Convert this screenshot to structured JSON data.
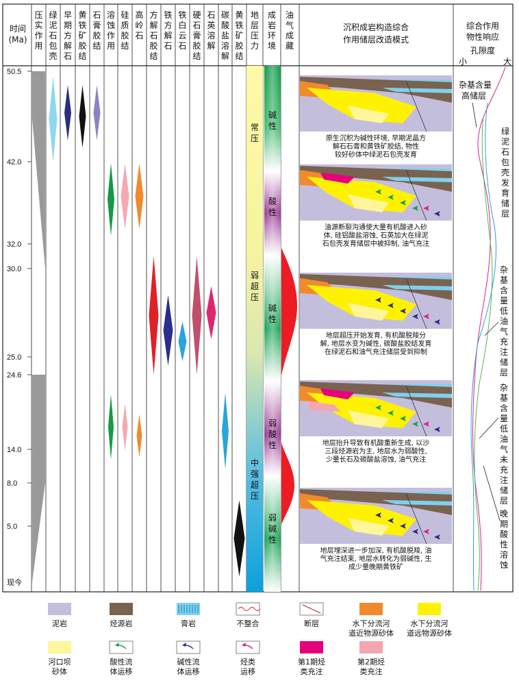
{
  "header": {
    "time": [
      "时间",
      "(Ma)"
    ],
    "columns": [
      "压实作用",
      "绿泥石包壳",
      "早期方解石",
      "黄铁矿胶结",
      "石膏胶结",
      "溶蚀作用",
      "硅质胶结",
      "高岭石",
      "方解石胶结",
      "铁方解石",
      "铁白云石",
      "硬石膏胶结",
      "石英溶解",
      "碳酸盐溶解",
      "黄铁矿胶结"
    ],
    "pressure": "地层压力",
    "environment": "成岩环境",
    "oil": "油气成藏",
    "model": [
      "沉积成岩构造综合",
      "作用储层改造模式"
    ],
    "response": [
      "综合作用",
      "物性响应"
    ],
    "porosity": "孔隙度",
    "porosity_small": "小",
    "porosity_large": "大"
  },
  "time_ticks": [
    {
      "label": "50.5",
      "ma": 50.5,
      "red": false
    },
    {
      "label": "42.0",
      "ma": 42.0,
      "red": false
    },
    {
      "label": "32.0",
      "ma": 32.0,
      "red": false
    },
    {
      "label": "30.0",
      "ma": 30.0,
      "red": true
    },
    {
      "label": "25.0",
      "ma": 25.0,
      "red": true
    },
    {
      "label": "24.6",
      "ma": 24.6,
      "red": false
    },
    {
      "label": "14.0",
      "ma": 14.0,
      "red": false
    },
    {
      "label": "8.0",
      "ma": 8.0,
      "red": false
    },
    {
      "label": "5.0",
      "ma": 5.0,
      "red": true
    },
    {
      "label": "现今",
      "ma": 0,
      "red": false
    }
  ],
  "pressure_labels": [
    "常压",
    "弱超压",
    "中强超压"
  ],
  "environment_labels": [
    "碱性",
    "酸性",
    "碱性",
    "弱酸性",
    "弱碱性"
  ],
  "panel_captions": [
    [
      "原生沉积为碱性环境, 早期泥晶方",
      "解石石膏和黄铁矿胶结, 物性",
      "较好砂体中绿泥石包壳发育"
    ],
    [
      "油源断裂沟通使大量有机酸进入砂",
      "体, 硅铝酸盐溶蚀, 石英加大在绿泥",
      "石包壳发育储层中被抑制, 油气充注"
    ],
    [
      "地层超压开始发育, 有机酸脱羧分",
      "解, 地层水变为碱性, 碳酸盐胶结发育",
      "在绿泥石和油气充注储层受到抑制"
    ],
    [
      "地层抬升导致有机酸重新生成, 以沙",
      "三段烃源岩为主, 地层水为弱酸性,",
      "少量长石及碳酸盐溶蚀, 油气充注"
    ],
    [
      "地层埋深进一步加深, 有机酸脱羧, 油",
      "气充注结束, 地层水转化为弱碱性, 生",
      "成少量晚期黄铁矿"
    ]
  ],
  "response_annotations": [
    "杂基含量高储层",
    "绿泥石包壳发育储层",
    "杂基含量低油气充注储层",
    "杂基含量低油气未充注储层",
    "晚期酸性溶蚀"
  ],
  "legend": [
    {
      "label": [
        "泥岩"
      ],
      "swatch": "mudstone"
    },
    {
      "label": [
        "烃源岩"
      ],
      "swatch": "source"
    },
    {
      "label": [
        "膏岩"
      ],
      "swatch": "gypsum"
    },
    {
      "label": [
        "不整合"
      ],
      "swatch": "unconformity"
    },
    {
      "label": [
        "断层"
      ],
      "swatch": "fault"
    },
    {
      "label": [
        "水下分流河",
        "道近物源砂体"
      ],
      "swatch": "near-sand"
    },
    {
      "label": [
        "水下分流河",
        "道远物源砂体"
      ],
      "swatch": "far-sand"
    },
    {
      "label": [
        "河口坝",
        "砂体"
      ],
      "swatch": "bar-sand"
    },
    {
      "label": [
        "酸性流",
        "体运移"
      ],
      "swatch": "acid-arrow"
    },
    {
      "label": [
        "碱性流",
        "体运移"
      ],
      "swatch": "alkaline-arrow"
    },
    {
      "label": [
        "烃类",
        "运移"
      ],
      "swatch": "hc-arrow"
    },
    {
      "label": [
        "第1期烃",
        "类充注"
      ],
      "swatch": "charge1"
    },
    {
      "label": [
        "第2期烃",
        "类充注"
      ],
      "swatch": "charge2"
    }
  ],
  "colors": {
    "mudstone": "#c4bedd",
    "source": "#7a6250",
    "gypsum": "#7fd0ee",
    "near_sand": "#f08a2c",
    "far_sand": "#fff200",
    "bar_sand": "#fff59a",
    "acid": "#12a04a",
    "alkaline": "#2a2e8c",
    "hydrocarbon": "#e6198a",
    "charge1": "#e6007e",
    "charge2": "#f4a6b0",
    "compaction": "#9a9a9a",
    "chlorite": "#8ed8f0",
    "early_calcite": "#2b2d7e",
    "pyrite": "#111111",
    "gypsum_cement": "#8a83c4",
    "dissolution": "#149a45",
    "silica": "#f4a9b2",
    "kaolinite": "#f08a2c",
    "calcite_cement": "#e02025",
    "ferro_calcite": "#2b2d8c",
    "ankerite": "#2aa4dc",
    "anhydrite": "#c0506a",
    "quartz_dissolution": "#e0256e",
    "carbonate_dissolution": "#2aa4dc",
    "late_pyrite": "#111111",
    "pressure_top": "#fff79a",
    "pressure_bottom": "#1aa6df",
    "oil": "#ed1c24",
    "env_green": "#0f9a4a",
    "env_purple": "#9b3b96"
  }
}
